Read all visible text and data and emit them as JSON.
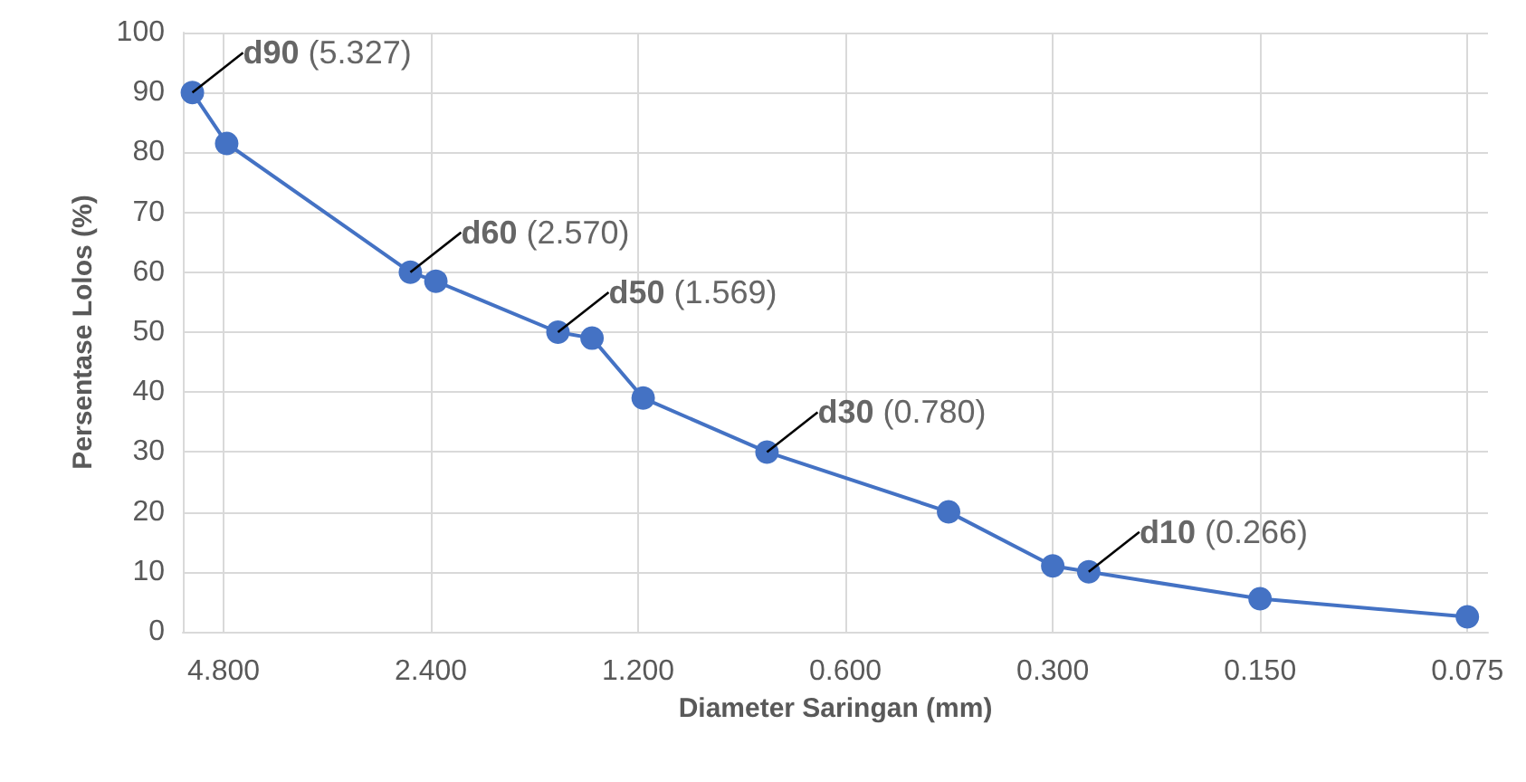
{
  "chart_data": {
    "type": "line",
    "xlabel": "Diameter Saringan (mm)",
    "ylabel": "Persentase Lolos (%)",
    "log": "x",
    "xlim": [
      5.5,
      0.07
    ],
    "xticks": [
      {
        "value": 4.8,
        "label": "4.800"
      },
      {
        "value": 2.4,
        "label": "2.400"
      },
      {
        "value": 1.2,
        "label": "1.200"
      },
      {
        "value": 0.6,
        "label": "0.600"
      },
      {
        "value": 0.3,
        "label": "0.300"
      },
      {
        "value": 0.15,
        "label": "0.150"
      },
      {
        "value": 0.075,
        "label": "0.075"
      }
    ],
    "ylim": [
      0,
      100
    ],
    "yticks": [
      0,
      10,
      20,
      30,
      40,
      50,
      60,
      70,
      80,
      90,
      100
    ],
    "grid": true,
    "marker": "circle",
    "line_style": "solid",
    "series": [
      {
        "color": "#4472c4",
        "x": [
          5.327,
          4.75,
          2.57,
          2.36,
          1.569,
          1.4,
          1.18,
          0.78,
          0.425,
          0.3,
          0.266,
          0.15,
          0.075
        ],
        "values": [
          90,
          81.5,
          60,
          58.5,
          50,
          49,
          39,
          30,
          20,
          11,
          10,
          5.5,
          2.5
        ]
      }
    ],
    "annotations": [
      {
        "text": "d90 (5.327)",
        "x": 5.327,
        "y": 90
      },
      {
        "text": "d60 (2.570)",
        "x": 2.57,
        "y": 60
      },
      {
        "text": "d50 (1.569)",
        "x": 1.569,
        "y": 50
      },
      {
        "text": "d30 (0.780)",
        "x": 0.78,
        "y": 30
      },
      {
        "text": "d10 (0.266)",
        "x": 0.266,
        "y": 10
      }
    ]
  }
}
